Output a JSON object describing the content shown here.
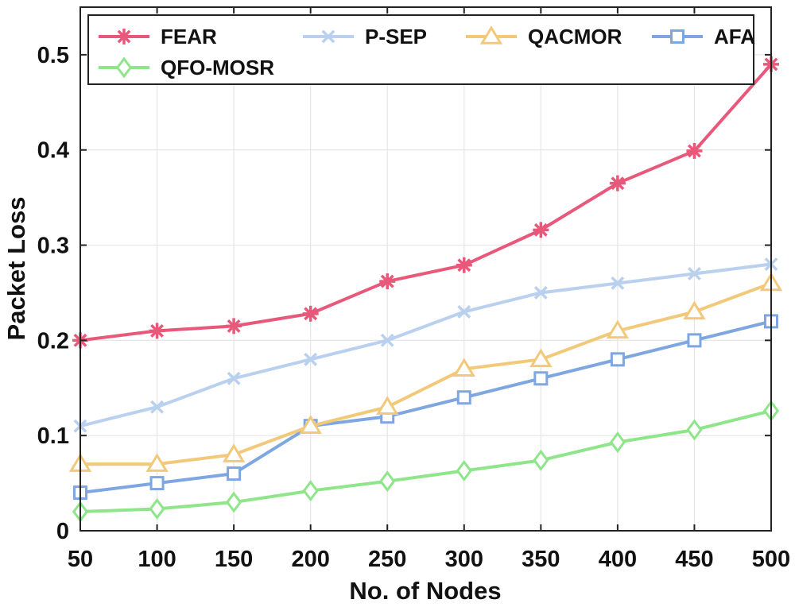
{
  "chart_data": {
    "type": "line",
    "title": "",
    "xlabel": "No. of Nodes",
    "ylabel": "Packet Loss",
    "x": [
      50,
      100,
      150,
      200,
      250,
      300,
      350,
      400,
      450,
      500
    ],
    "xlim": [
      50,
      500
    ],
    "ylim": [
      0,
      0.55
    ],
    "xticks": [
      "50",
      "100",
      "150",
      "200",
      "250",
      "300",
      "350",
      "400",
      "450",
      "500"
    ],
    "yticks": [
      "0",
      "0.1",
      "0.2",
      "0.3",
      "0.4",
      "0.5"
    ],
    "ytick_values": [
      0,
      0.1,
      0.2,
      0.3,
      0.4,
      0.5
    ],
    "grid": true,
    "legend_position": "top",
    "series": [
      {
        "name": "FEAR",
        "color": "#e8587a",
        "marker": "asterisk",
        "values": [
          0.2,
          0.21,
          0.215,
          0.228,
          0.262,
          0.279,
          0.316,
          0.365,
          0.399,
          0.49
        ]
      },
      {
        "name": "P-SEP",
        "color": "#b9d0ee",
        "marker": "x",
        "values": [
          0.11,
          0.13,
          0.16,
          0.18,
          0.2,
          0.23,
          0.25,
          0.26,
          0.27,
          0.28
        ]
      },
      {
        "name": "QACMOR",
        "color": "#f2c97a",
        "marker": "triangle",
        "values": [
          0.07,
          0.07,
          0.08,
          0.11,
          0.13,
          0.17,
          0.18,
          0.21,
          0.23,
          0.26
        ]
      },
      {
        "name": "AFA",
        "color": "#7ea6e0",
        "marker": "square",
        "values": [
          0.04,
          0.05,
          0.06,
          0.11,
          0.12,
          0.14,
          0.16,
          0.18,
          0.2,
          0.22
        ]
      },
      {
        "name": "QFO-MOSR",
        "color": "#8ee58a",
        "marker": "diamond",
        "values": [
          0.02,
          0.023,
          0.03,
          0.042,
          0.052,
          0.063,
          0.074,
          0.093,
          0.106,
          0.126
        ]
      }
    ]
  }
}
